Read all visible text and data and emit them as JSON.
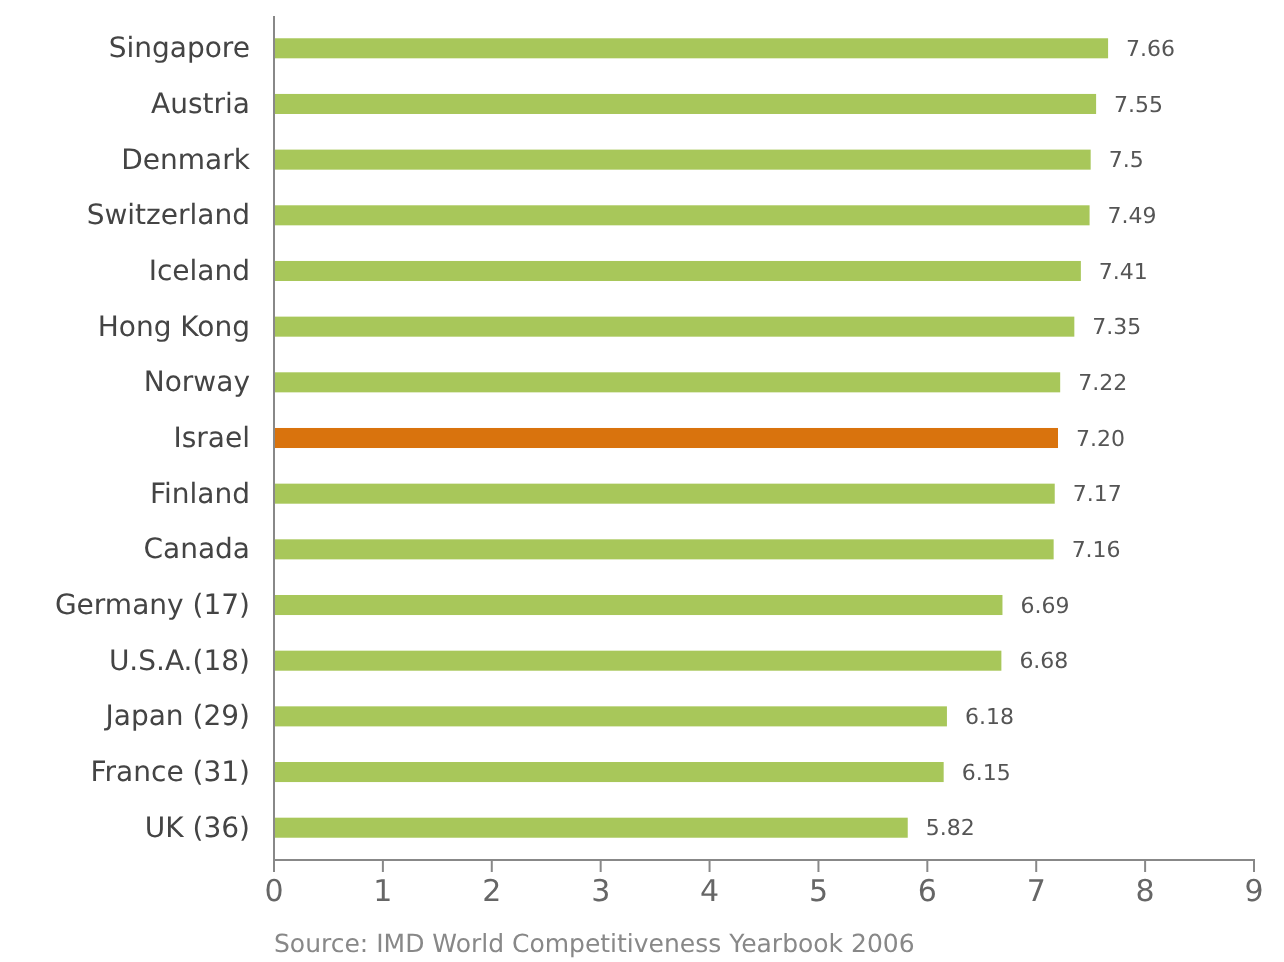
{
  "chart_data": {
    "type": "bar",
    "orientation": "horizontal",
    "categories": [
      "Singapore",
      "Austria",
      "Denmark",
      "Switzerland",
      "Iceland",
      "Hong Kong",
      "Norway",
      "Israel",
      "Finland",
      "Canada",
      "Germany (17)",
      "U.S.A.(18)",
      "Japan (29)",
      "France (31)",
      "UK (36)"
    ],
    "values": [
      7.66,
      7.55,
      7.5,
      7.49,
      7.41,
      7.35,
      7.22,
      7.2,
      7.17,
      7.16,
      6.69,
      6.68,
      6.18,
      6.15,
      5.82
    ],
    "value_labels": [
      "7.66",
      "7.55",
      "7.5",
      "7.49",
      "7.41",
      "7.35",
      "7.22",
      "7.20",
      "7.17",
      "7.16",
      "6.69",
      "6.68",
      "6.18",
      "6.15",
      "5.82"
    ],
    "colors": [
      "#a8c75a",
      "#a8c75a",
      "#a8c75a",
      "#a8c75a",
      "#a8c75a",
      "#a8c75a",
      "#a8c75a",
      "#d9730d",
      "#a8c75a",
      "#a8c75a",
      "#a8c75a",
      "#a8c75a",
      "#a8c75a",
      "#a8c75a",
      "#a8c75a"
    ],
    "xlim": [
      0,
      9
    ],
    "xticks": [
      0,
      1,
      2,
      3,
      4,
      5,
      6,
      7,
      8,
      9
    ],
    "grid": false,
    "annotations": [
      "Source: IMD World Competitiveness Yearbook 2006"
    ]
  }
}
